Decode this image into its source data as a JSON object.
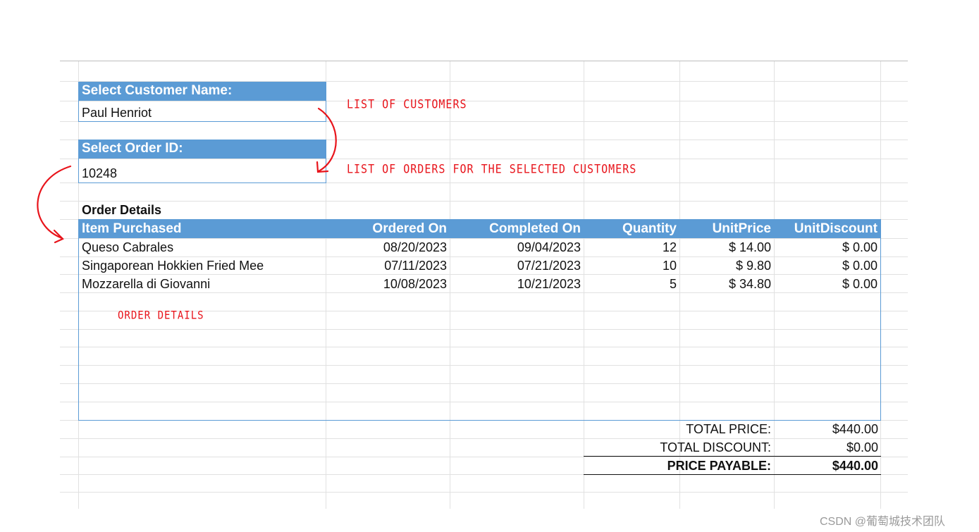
{
  "customer": {
    "label": "Select Customer Name:",
    "value": "Paul Henriot"
  },
  "order": {
    "label": "Select Order ID:",
    "value": "10248"
  },
  "details": {
    "title": "Order Details",
    "columns": [
      "Item Purchased",
      "Ordered On",
      "Completed On",
      "Quantity",
      "UnitPrice",
      "UnitDiscount"
    ],
    "rows": [
      [
        "Queso Cabrales",
        "08/20/2023",
        "09/04/2023",
        "12",
        "$ 14.00",
        "$ 0.00"
      ],
      [
        "Singaporean Hokkien Fried Mee",
        "07/11/2023",
        "07/21/2023",
        "10",
        "$ 9.80",
        "$ 0.00"
      ],
      [
        "Mozzarella di Giovanni",
        "10/08/2023",
        "10/21/2023",
        "5",
        "$ 34.80",
        "$ 0.00"
      ]
    ]
  },
  "totals": {
    "total_price_label": "TOTAL PRICE:",
    "total_price": "$440.00",
    "total_discount_label": "TOTAL DISCOUNT:",
    "total_discount": "$0.00",
    "payable_label": "PRICE PAYABLE:",
    "payable": "$440.00"
  },
  "annotations": {
    "customers": "LIST OF CUSTOMERS",
    "orders": "LIST OF ORDERS FOR THE SELECTED CUSTOMERS",
    "details": "ORDER DETAILS",
    "color": "#e8141b"
  },
  "watermark": "CSDN @葡萄城技术团队",
  "colors": {
    "header": "#5b9bd5"
  }
}
